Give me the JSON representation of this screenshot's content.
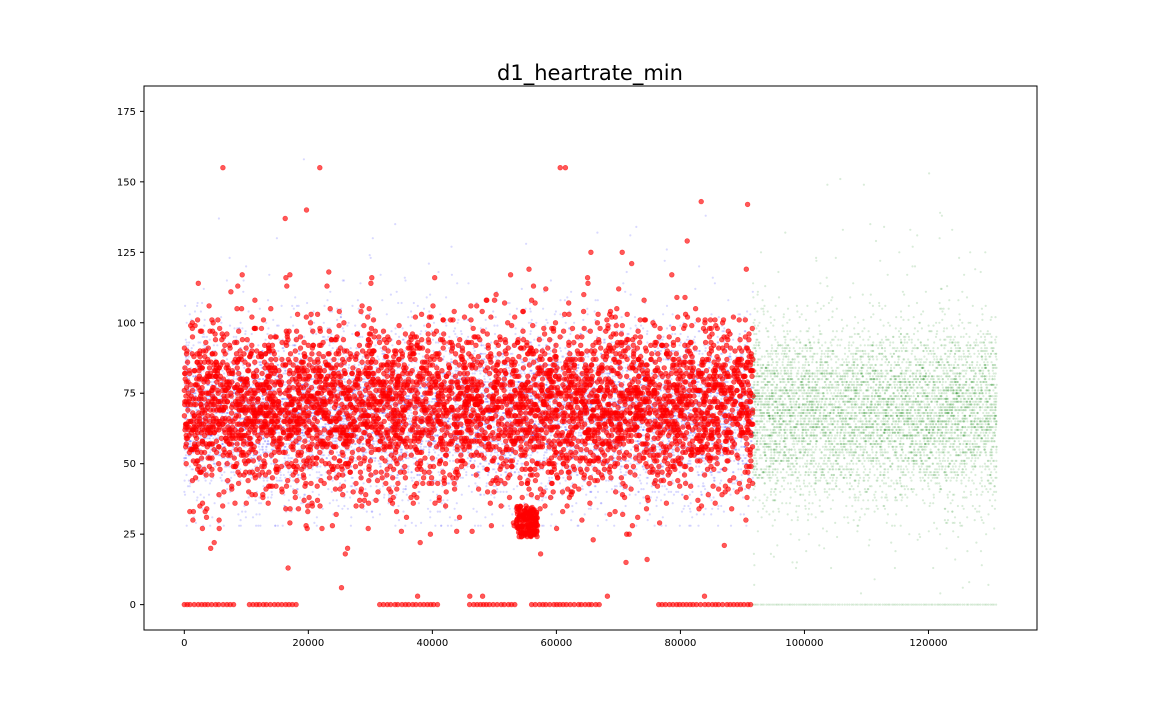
{
  "chart_data": {
    "type": "scatter",
    "title": "d1_heartrate_min",
    "xlabel": "",
    "ylabel": "",
    "xlim": [
      -6500,
      137500
    ],
    "ylim": [
      -9,
      184
    ],
    "x_ticks": [
      0,
      20000,
      40000,
      60000,
      80000,
      100000,
      120000
    ],
    "y_ticks": [
      0,
      25,
      50,
      75,
      100,
      125,
      150,
      175
    ],
    "grid": false,
    "legend": "none",
    "series": [
      {
        "color": "#0000ff",
        "marker_size": 2,
        "alpha": 0.15,
        "x_range": [
          0,
          91700
        ],
        "y_center": 68,
        "y_spread": 14,
        "y_range": [
          28,
          175
        ],
        "zero_band": false,
        "approx_point_count": 9000
      },
      {
        "color": "#ff0000",
        "marker_size": 4,
        "alpha": 0.65,
        "x_range": [
          0,
          91700
        ],
        "y_center": 70,
        "y_spread": 15,
        "y_range": [
          0,
          155
        ],
        "zero_band": true,
        "dense_low_cluster": {
          "x_range": [
            53500,
            57000
          ],
          "y_range": [
            24,
            35
          ]
        },
        "zero_x_segments": [
          [
            0,
            8500
          ],
          [
            10500,
            18500
          ],
          [
            31500,
            41000
          ],
          [
            46000,
            53500
          ],
          [
            56000,
            67500
          ],
          [
            76500,
            91500
          ]
        ],
        "approx_point_count": 4500
      },
      {
        "color": "#008000",
        "marker_size": 2,
        "alpha": 0.15,
        "x_range": [
          91700,
          131000
        ],
        "y_center": 68,
        "y_spread": 15,
        "y_range": [
          0,
          153
        ],
        "zero_band": true,
        "approx_point_count": 6000
      }
    ]
  }
}
